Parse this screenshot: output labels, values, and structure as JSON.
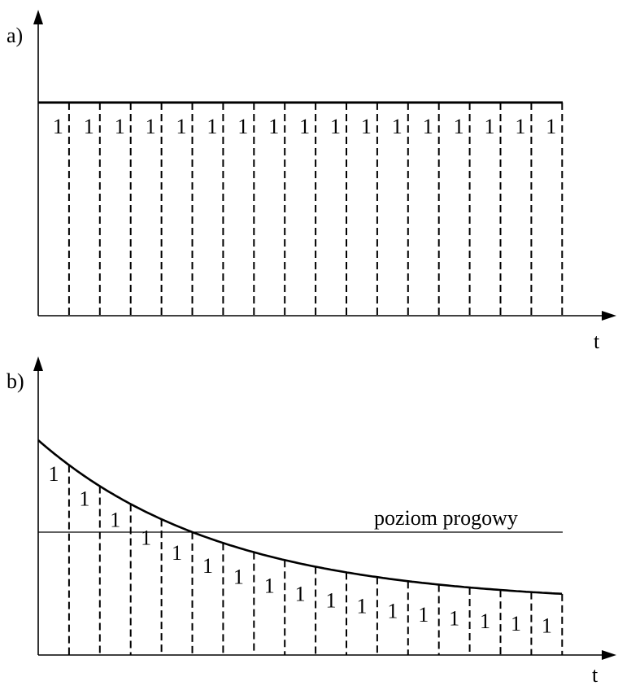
{
  "panel_a": {
    "label": "a)",
    "t_label": "t",
    "cell_values": [
      "1",
      "1",
      "1",
      "1",
      "1",
      "1",
      "1",
      "1",
      "1",
      "1",
      "1",
      "1",
      "1",
      "1",
      "1",
      "1",
      "1"
    ]
  },
  "panel_b": {
    "label": "b)",
    "t_label": "t",
    "threshold_label": "poziom progowy",
    "cell_values": [
      "1",
      "1",
      "1",
      "1",
      "1",
      "1",
      "1",
      "1",
      "1",
      "1",
      "1",
      "1",
      "1",
      "1",
      "1",
      "1",
      "1"
    ]
  },
  "colors": {
    "ink": "#000000",
    "background": "#ffffff"
  }
}
